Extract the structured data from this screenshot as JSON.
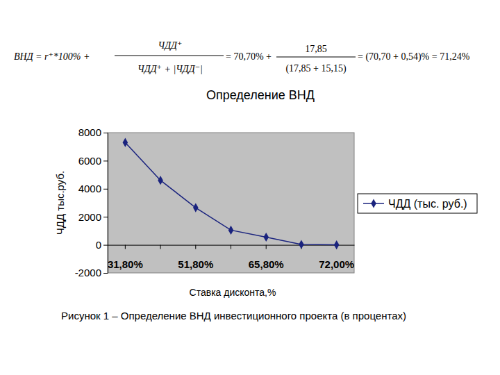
{
  "chart_data": {
    "type": "line",
    "title": "Определение ВНД",
    "annotations": [
      "ВНД = r⁺*100% +",
      "ЧДД⁺",
      "ЧДД⁺ + |ЧДД⁻|",
      "= 70,70% +",
      "17,85",
      "(17,85 + 15,15)",
      "= (70,70 + 0,54)% = 71,24%"
    ],
    "caption": "Рисунок 1 – Определение ВНД инвестиционного проекта (в процентах)",
    "x_label": "Ставка дисконта,%",
    "y_label": "ЧДД тыс.руб.",
    "categories": [
      "31,80%",
      null,
      "51,80%",
      null,
      "65,80%",
      null,
      "72,00%"
    ],
    "series": [
      {
        "name": "ЧДД (тыс. руб.)",
        "color": "#1a237e",
        "marker": "diamond",
        "line_style": "solid",
        "values": [
          7300,
          4600,
          2650,
          1050,
          550,
          30,
          0
        ]
      }
    ],
    "ylim": [
      -2000,
      8000
    ],
    "yticks": [
      -2000,
      0,
      2000,
      4000,
      6000,
      8000
    ],
    "grid": false,
    "legend": "right"
  }
}
